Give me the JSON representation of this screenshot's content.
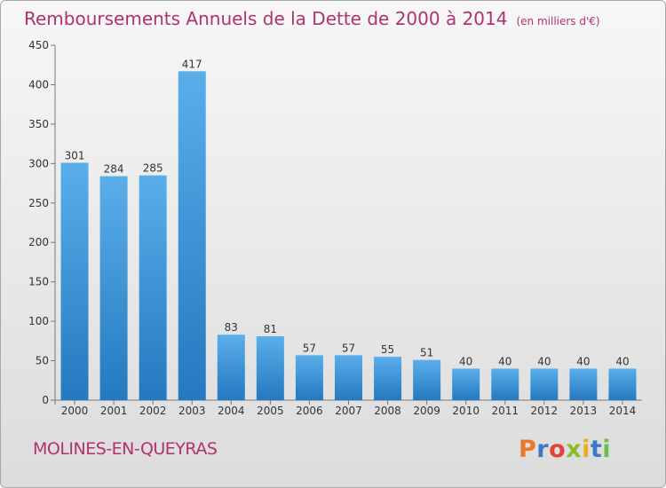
{
  "chart_data": {
    "type": "bar",
    "title": "Remboursements Annuels de la Dette de 2000 à 2014",
    "unit": "(en milliers d'€)",
    "categories": [
      "2000",
      "2001",
      "2002",
      "2003",
      "2004",
      "2005",
      "2006",
      "2007",
      "2008",
      "2009",
      "2010",
      "2011",
      "2012",
      "2013",
      "2014"
    ],
    "values": [
      301,
      284,
      285,
      417,
      83,
      81,
      57,
      57,
      55,
      51,
      40,
      40,
      40,
      40,
      40
    ],
    "ylim": [
      0,
      450
    ],
    "yticks": [
      0,
      50,
      100,
      150,
      200,
      250,
      300,
      350,
      400,
      450
    ],
    "grid": false,
    "bar_color": "#3a8fd8"
  },
  "footer": {
    "location": "MOLINES-EN-QUEYRAS",
    "brand": "Proxiti"
  },
  "colors": {
    "title": "#b0336e",
    "brand_letters": [
      "#e8792b",
      "#3d78c4",
      "#e0453a",
      "#8cbb2a",
      "#e8b020",
      "#3d78c4",
      "#6cc04a"
    ]
  }
}
